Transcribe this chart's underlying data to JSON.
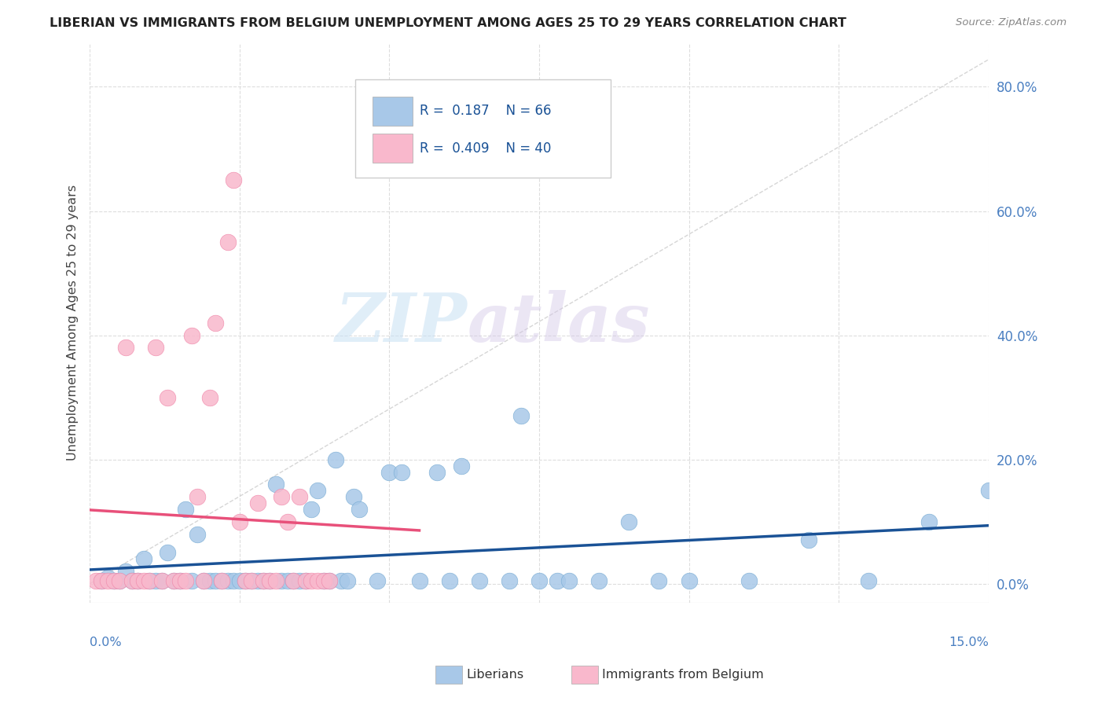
{
  "title": "LIBERIAN VS IMMIGRANTS FROM BELGIUM UNEMPLOYMENT AMONG AGES 25 TO 29 YEARS CORRELATION CHART",
  "source": "Source: ZipAtlas.com",
  "ylabel": "Unemployment Among Ages 25 to 29 years",
  "ytick_values": [
    0.0,
    0.2,
    0.4,
    0.6,
    0.8
  ],
  "ytick_labels": [
    "0.0%",
    "20.0%",
    "40.0%",
    "60.0%",
    "80.0%"
  ],
  "xmin": 0.0,
  "xmax": 0.15,
  "ymin": -0.03,
  "ymax": 0.87,
  "watermark_zip": "ZIP",
  "watermark_atlas": "atlas",
  "liberian_color": "#a8c8e8",
  "liberian_edge_color": "#7aadd4",
  "belgium_color": "#f9b8cc",
  "belgium_edge_color": "#f088aa",
  "liberian_line_color": "#1a5296",
  "belgium_line_color": "#e8507a",
  "diagonal_color": "#cccccc",
  "grid_color": "#dddddd",
  "liberian_points": [
    [
      0.002,
      0.005
    ],
    [
      0.003,
      0.01
    ],
    [
      0.004,
      0.005
    ],
    [
      0.005,
      0.005
    ],
    [
      0.006,
      0.02
    ],
    [
      0.007,
      0.005
    ],
    [
      0.008,
      0.005
    ],
    [
      0.009,
      0.04
    ],
    [
      0.01,
      0.005
    ],
    [
      0.011,
      0.005
    ],
    [
      0.012,
      0.005
    ],
    [
      0.013,
      0.05
    ],
    [
      0.014,
      0.005
    ],
    [
      0.015,
      0.005
    ],
    [
      0.016,
      0.12
    ],
    [
      0.017,
      0.005
    ],
    [
      0.018,
      0.08
    ],
    [
      0.019,
      0.005
    ],
    [
      0.02,
      0.005
    ],
    [
      0.021,
      0.005
    ],
    [
      0.022,
      0.005
    ],
    [
      0.023,
      0.005
    ],
    [
      0.024,
      0.005
    ],
    [
      0.025,
      0.005
    ],
    [
      0.026,
      0.005
    ],
    [
      0.027,
      0.005
    ],
    [
      0.028,
      0.005
    ],
    [
      0.029,
      0.005
    ],
    [
      0.03,
      0.005
    ],
    [
      0.031,
      0.16
    ],
    [
      0.032,
      0.005
    ],
    [
      0.033,
      0.005
    ],
    [
      0.034,
      0.005
    ],
    [
      0.035,
      0.005
    ],
    [
      0.036,
      0.005
    ],
    [
      0.037,
      0.12
    ],
    [
      0.038,
      0.15
    ],
    [
      0.039,
      0.005
    ],
    [
      0.04,
      0.005
    ],
    [
      0.041,
      0.2
    ],
    [
      0.042,
      0.005
    ],
    [
      0.043,
      0.005
    ],
    [
      0.044,
      0.14
    ],
    [
      0.045,
      0.12
    ],
    [
      0.048,
      0.005
    ],
    [
      0.05,
      0.18
    ],
    [
      0.052,
      0.18
    ],
    [
      0.055,
      0.005
    ],
    [
      0.058,
      0.18
    ],
    [
      0.06,
      0.005
    ],
    [
      0.062,
      0.19
    ],
    [
      0.065,
      0.005
    ],
    [
      0.07,
      0.005
    ],
    [
      0.072,
      0.27
    ],
    [
      0.075,
      0.005
    ],
    [
      0.078,
      0.005
    ],
    [
      0.08,
      0.005
    ],
    [
      0.085,
      0.005
    ],
    [
      0.09,
      0.1
    ],
    [
      0.095,
      0.005
    ],
    [
      0.1,
      0.005
    ],
    [
      0.11,
      0.005
    ],
    [
      0.12,
      0.07
    ],
    [
      0.13,
      0.005
    ],
    [
      0.14,
      0.1
    ],
    [
      0.15,
      0.15
    ]
  ],
  "belgium_points": [
    [
      0.001,
      0.005
    ],
    [
      0.002,
      0.005
    ],
    [
      0.003,
      0.005
    ],
    [
      0.004,
      0.005
    ],
    [
      0.005,
      0.005
    ],
    [
      0.006,
      0.38
    ],
    [
      0.007,
      0.005
    ],
    [
      0.008,
      0.005
    ],
    [
      0.009,
      0.005
    ],
    [
      0.01,
      0.005
    ],
    [
      0.011,
      0.38
    ],
    [
      0.012,
      0.005
    ],
    [
      0.013,
      0.3
    ],
    [
      0.014,
      0.005
    ],
    [
      0.015,
      0.005
    ],
    [
      0.016,
      0.005
    ],
    [
      0.017,
      0.4
    ],
    [
      0.018,
      0.14
    ],
    [
      0.019,
      0.005
    ],
    [
      0.02,
      0.3
    ],
    [
      0.021,
      0.42
    ],
    [
      0.022,
      0.005
    ],
    [
      0.023,
      0.55
    ],
    [
      0.024,
      0.65
    ],
    [
      0.025,
      0.1
    ],
    [
      0.026,
      0.005
    ],
    [
      0.027,
      0.005
    ],
    [
      0.028,
      0.13
    ],
    [
      0.029,
      0.005
    ],
    [
      0.03,
      0.005
    ],
    [
      0.031,
      0.005
    ],
    [
      0.032,
      0.14
    ],
    [
      0.033,
      0.1
    ],
    [
      0.034,
      0.005
    ],
    [
      0.035,
      0.14
    ],
    [
      0.036,
      0.005
    ],
    [
      0.037,
      0.005
    ],
    [
      0.038,
      0.005
    ],
    [
      0.039,
      0.005
    ],
    [
      0.04,
      0.005
    ]
  ]
}
